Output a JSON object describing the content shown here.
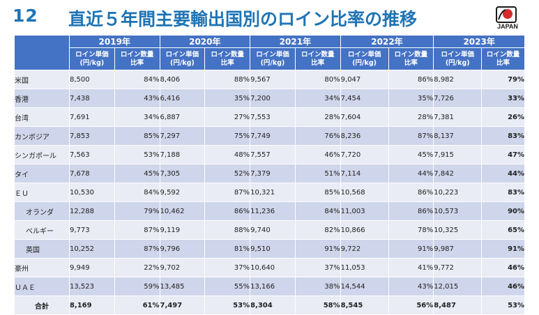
{
  "slide": {
    "number": "12",
    "title": "直近５年間主要輸出国別のロイン比率の推移"
  },
  "logo": {
    "text": "JAPAN",
    "icon": "japan-brand-logo-icon"
  },
  "table": {
    "years": [
      "2019年",
      "2020年",
      "2021年",
      "2022年",
      "2023年"
    ],
    "sub_price": "ロイン単価\n(円/kg)",
    "sub_ratio": "ロイン数量\n比率",
    "rows": [
      {
        "name": "米国",
        "indent": false,
        "cells": [
          [
            "8,500",
            "84%"
          ],
          [
            "8,406",
            "88%"
          ],
          [
            "9,567",
            "80%"
          ],
          [
            "9,047",
            "86%"
          ],
          [
            "8,982",
            "79%"
          ]
        ]
      },
      {
        "name": "香港",
        "indent": false,
        "cells": [
          [
            "7,438",
            "43%"
          ],
          [
            "6,416",
            "35%"
          ],
          [
            "7,200",
            "34%"
          ],
          [
            "7,454",
            "35%"
          ],
          [
            "7,726",
            "33%"
          ]
        ]
      },
      {
        "name": "台湾",
        "indent": false,
        "cells": [
          [
            "7,691",
            "34%"
          ],
          [
            "6,887",
            "27%"
          ],
          [
            "7,553",
            "28%"
          ],
          [
            "7,604",
            "28%"
          ],
          [
            "7,381",
            "26%"
          ]
        ]
      },
      {
        "name": "カンボジア",
        "indent": false,
        "cells": [
          [
            "7,853",
            "85%"
          ],
          [
            "7,297",
            "75%"
          ],
          [
            "7,749",
            "76%"
          ],
          [
            "8,236",
            "87%"
          ],
          [
            "8,137",
            "83%"
          ]
        ]
      },
      {
        "name": "シンガポール",
        "indent": false,
        "cells": [
          [
            "7,563",
            "53%"
          ],
          [
            "7,188",
            "48%"
          ],
          [
            "7,557",
            "46%"
          ],
          [
            "7,720",
            "45%"
          ],
          [
            "7,915",
            "47%"
          ]
        ]
      },
      {
        "name": "タイ",
        "indent": false,
        "cells": [
          [
            "7,678",
            "45%"
          ],
          [
            "7,305",
            "52%"
          ],
          [
            "7,379",
            "51%"
          ],
          [
            "7,114",
            "44%"
          ],
          [
            "7,842",
            "44%"
          ]
        ]
      },
      {
        "name": "ＥＵ",
        "indent": false,
        "cells": [
          [
            "10,530",
            "84%"
          ],
          [
            "9,592",
            "87%"
          ],
          [
            "10,321",
            "85%"
          ],
          [
            "10,568",
            "86%"
          ],
          [
            "10,223",
            "83%"
          ]
        ]
      },
      {
        "name": "オランダ",
        "indent": true,
        "cells": [
          [
            "12,288",
            "79%"
          ],
          [
            "10,462",
            "86%"
          ],
          [
            "11,236",
            "84%"
          ],
          [
            "11,003",
            "86%"
          ],
          [
            "10,573",
            "90%"
          ]
        ]
      },
      {
        "name": "ベルギー",
        "indent": true,
        "cells": [
          [
            "9,773",
            "87%"
          ],
          [
            "9,119",
            "88%"
          ],
          [
            "9,740",
            "82%"
          ],
          [
            "10,866",
            "78%"
          ],
          [
            "10,325",
            "65%"
          ]
        ]
      },
      {
        "name": "英国",
        "indent": true,
        "cells": [
          [
            "10,252",
            "87%"
          ],
          [
            "9,796",
            "81%"
          ],
          [
            "9,510",
            "91%"
          ],
          [
            "9,722",
            "91%"
          ],
          [
            "9,987",
            "91%"
          ]
        ]
      },
      {
        "name": "豪州",
        "indent": false,
        "cells": [
          [
            "9,949",
            "22%"
          ],
          [
            "9,702",
            "37%"
          ],
          [
            "10,640",
            "37%"
          ],
          [
            "11,053",
            "41%"
          ],
          [
            "9,772",
            "46%"
          ]
        ]
      },
      {
        "name": "ＵＡＥ",
        "indent": false,
        "cells": [
          [
            "13,523",
            "59%"
          ],
          [
            "13,485",
            "55%"
          ],
          [
            "13,166",
            "38%"
          ],
          [
            "14,544",
            "43%"
          ],
          [
            "12,015",
            "46%"
          ]
        ]
      }
    ],
    "total": {
      "name": "合計",
      "cells": [
        [
          "8,169",
          "61%"
        ],
        [
          "7,497",
          "53%"
        ],
        [
          "8,304",
          "58%"
        ],
        [
          "8,545",
          "56%"
        ],
        [
          "8,487",
          "53%"
        ]
      ]
    }
  }
}
